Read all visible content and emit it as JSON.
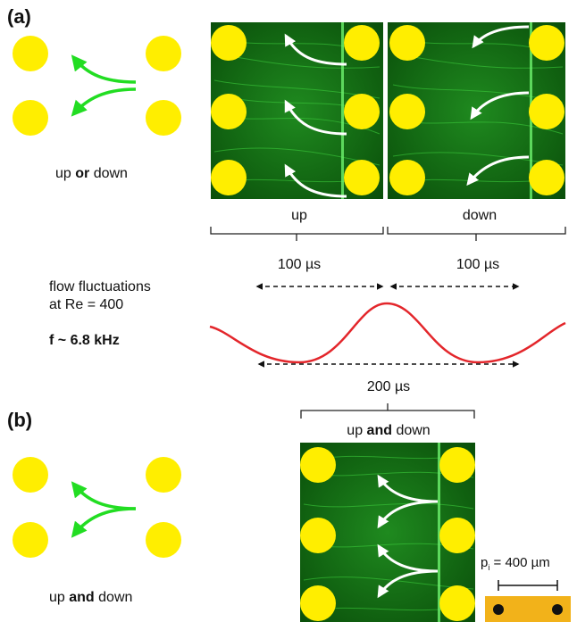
{
  "panel_a": {
    "label": "(a)",
    "caption_pre": "up ",
    "caption_bold": "or",
    "caption_post": " down",
    "photo_up_label": "up",
    "photo_down_label": "down",
    "duration_up": "100 µs",
    "duration_down": "100 µs",
    "fluct_line1": "flow fluctuations",
    "fluct_line2": "at Re = 400",
    "frequency": "f ~ 6.8 kHz",
    "period": "200 µs"
  },
  "panel_b": {
    "label": "(b)",
    "caption_pre": "up ",
    "caption_bold": "and",
    "caption_post": " down",
    "photo_label_pre": "up ",
    "photo_label_bold": "and",
    "photo_label_post": " down",
    "pitch_label": "p",
    "pitch_sub": "i",
    "pitch_value": " = 400 µm"
  },
  "colors": {
    "pillar": "#ffee00",
    "flow_arrow": "#22dd22",
    "sine": "#e3262b",
    "photo_bg": "#0c5a0c",
    "scale_bar_fill": "#f2b21a"
  }
}
